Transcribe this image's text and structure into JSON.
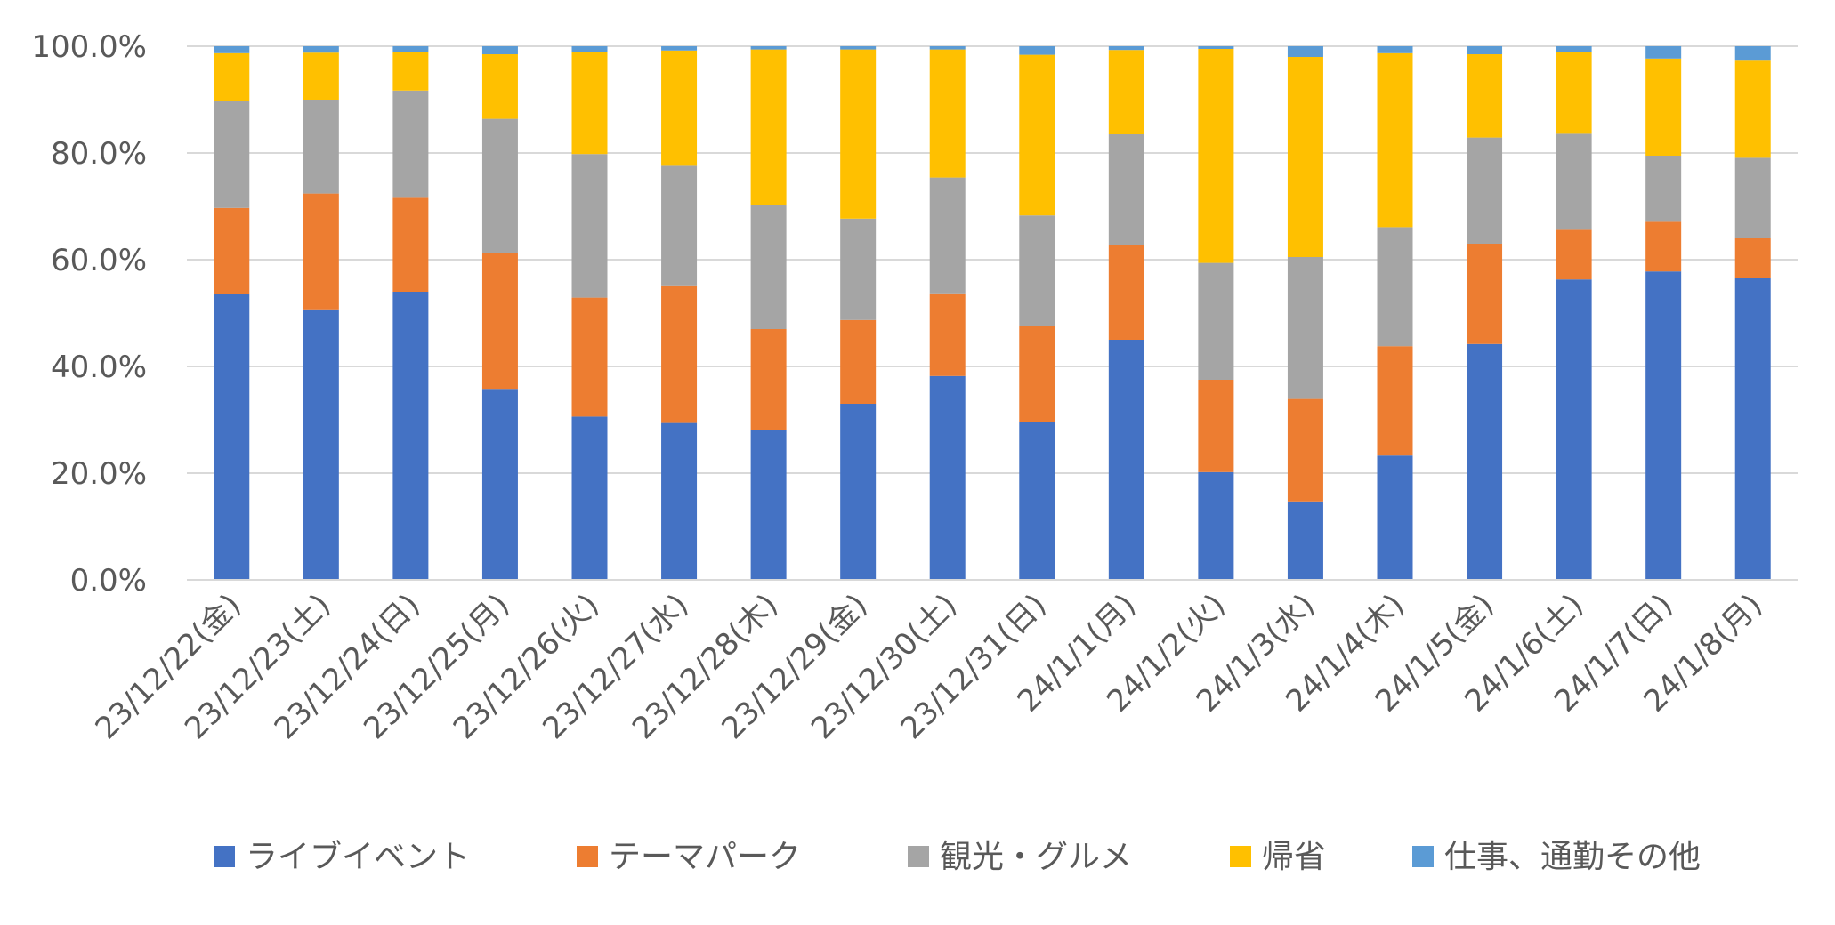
{
  "chart_data": {
    "type": "bar",
    "stacked": true,
    "percent": true,
    "categories": [
      "23/12/22(金)",
      "23/12/23(土)",
      "23/12/24(日)",
      "23/12/25(月)",
      "23/12/26(火)",
      "23/12/27(水)",
      "23/12/28(木)",
      "23/12/29(金)",
      "23/12/30(土)",
      "23/12/31(日)",
      "24/1/1(月)",
      "24/1/2(火)",
      "24/1/3(水)",
      "24/1/4(木)",
      "24/1/5(金)",
      "24/1/6(土)",
      "24/1/7(日)",
      "24/1/8(月)"
    ],
    "series": [
      {
        "name": "ライブイベント",
        "color": "#4472C4",
        "values": [
          53.5,
          50.7,
          54.0,
          35.8,
          30.6,
          29.4,
          28.0,
          33.0,
          38.2,
          29.5,
          45.0,
          20.2,
          14.7,
          23.3,
          44.2,
          56.3,
          57.8,
          56.5
        ]
      },
      {
        "name": "テーマパーク",
        "color": "#ED7D31",
        "values": [
          16.2,
          21.7,
          17.6,
          25.5,
          22.3,
          25.8,
          19.0,
          15.7,
          15.5,
          18.0,
          17.8,
          17.3,
          19.2,
          20.5,
          18.8,
          9.3,
          9.3,
          7.5
        ]
      },
      {
        "name": "観光・グルメ",
        "color": "#A5A5A5",
        "values": [
          20.0,
          17.6,
          20.1,
          25.1,
          26.9,
          22.4,
          23.3,
          19.0,
          21.7,
          20.8,
          20.7,
          21.9,
          26.6,
          22.3,
          19.9,
          18.0,
          12.4,
          15.1
        ]
      },
      {
        "name": "帰省",
        "color": "#FFC000",
        "values": [
          9.0,
          8.8,
          7.3,
          12.1,
          19.2,
          21.6,
          29.1,
          31.7,
          24.0,
          30.1,
          15.8,
          40.1,
          37.5,
          32.6,
          15.6,
          15.3,
          18.2,
          18.2
        ]
      },
      {
        "name": "仕事、通勤その他",
        "color": "#5B9BD5",
        "values": [
          1.3,
          1.2,
          1.0,
          1.5,
          1.0,
          0.8,
          0.6,
          0.6,
          0.6,
          1.6,
          0.7,
          0.5,
          2.0,
          1.3,
          1.5,
          1.1,
          2.3,
          2.7
        ]
      }
    ],
    "y_ticks": [
      "0.0%",
      "20.0%",
      "40.0%",
      "60.0%",
      "80.0%",
      "100.0%"
    ],
    "ylim": [
      0,
      100
    ],
    "grid": true,
    "legend_position": "bottom"
  }
}
